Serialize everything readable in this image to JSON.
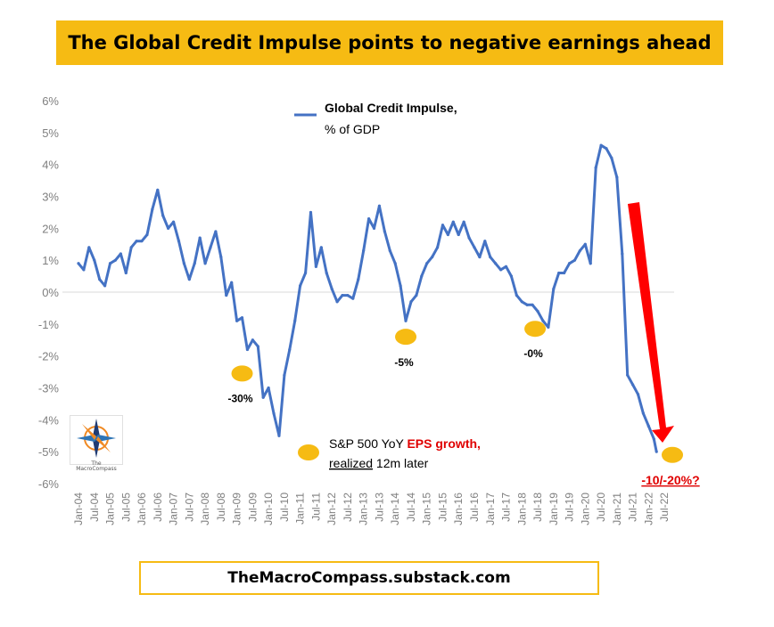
{
  "header": {
    "title": "The Global Credit Impulse points to negative earnings ahead"
  },
  "footer": {
    "site": "TheMacroCompass.substack.com"
  },
  "logo": {
    "line1": "The",
    "line2": "MacroCompass"
  },
  "colors": {
    "line": "#4472c4",
    "marker": "#f6bb13",
    "arrow": "#ff0000",
    "accent_text": "#e00000",
    "axis_text": "#7f7f7f",
    "zero_line": "#d9d9d9"
  },
  "legend": {
    "series_label_1": "Global Credit Impulse,",
    "series_label_2": "% of GDP",
    "marker_label_1": "S&P 500 YoY",
    "marker_label_1_red": "EPS growth,",
    "marker_label_2_underlined": "realized",
    "marker_label_2_rest": "12m later"
  },
  "annotations": [
    {
      "x": "Mar-09",
      "y": -2.55,
      "label": "-30%"
    },
    {
      "x": "May-14",
      "y": -1.4,
      "label": "-5%"
    },
    {
      "x": "Jun-18",
      "y": -1.15,
      "label": "-0%"
    },
    {
      "x": "Oct-22",
      "y": -5.1,
      "label": "-10/-20%?"
    }
  ],
  "chart_data": {
    "type": "line",
    "title": "The Global Credit Impulse points to negative earnings ahead",
    "xlabel": "",
    "ylabel": "",
    "ylim": [
      -6,
      6
    ],
    "y_ticks": [
      "6%",
      "5%",
      "4%",
      "3%",
      "2%",
      "1%",
      "0%",
      "-1%",
      "-2%",
      "-3%",
      "-4%",
      "-5%",
      "-6%"
    ],
    "x_ticks": [
      "Jan-04",
      "Jul-04",
      "Jan-05",
      "Jul-05",
      "Jan-06",
      "Jul-06",
      "Jan-07",
      "Jul-07",
      "Jan-08",
      "Jul-08",
      "Jan-09",
      "Jul-09",
      "Jan-10",
      "Jul-10",
      "Jan-11",
      "Jul-11",
      "Jan-12",
      "Jul-12",
      "Jan-13",
      "Jul-13",
      "Jan-14",
      "Jul-14",
      "Jan-15",
      "Jul-15",
      "Jan-16",
      "Jul-16",
      "Jan-17",
      "Jul-17",
      "Jan-18",
      "Jul-18",
      "Jan-19",
      "Jul-19",
      "Jan-20",
      "Jul-20",
      "Jan-21",
      "Jul-21",
      "Jan-22",
      "Jul-22"
    ],
    "series": [
      {
        "name": "Global Credit Impulse, % of GDP",
        "points": [
          [
            "Jan-04",
            0.9
          ],
          [
            "Mar-04",
            0.7
          ],
          [
            "May-04",
            1.4
          ],
          [
            "Jul-04",
            1.0
          ],
          [
            "Sep-04",
            0.4
          ],
          [
            "Nov-04",
            0.2
          ],
          [
            "Jan-05",
            0.9
          ],
          [
            "Mar-05",
            1.0
          ],
          [
            "May-05",
            1.2
          ],
          [
            "Jul-05",
            0.6
          ],
          [
            "Sep-05",
            1.4
          ],
          [
            "Nov-05",
            1.6
          ],
          [
            "Jan-06",
            1.6
          ],
          [
            "Mar-06",
            1.8
          ],
          [
            "May-06",
            2.6
          ],
          [
            "Jul-06",
            3.2
          ],
          [
            "Sep-06",
            2.4
          ],
          [
            "Nov-06",
            2.0
          ],
          [
            "Jan-07",
            2.2
          ],
          [
            "Mar-07",
            1.6
          ],
          [
            "May-07",
            0.9
          ],
          [
            "Jul-07",
            0.4
          ],
          [
            "Sep-07",
            0.9
          ],
          [
            "Nov-07",
            1.7
          ],
          [
            "Jan-08",
            0.9
          ],
          [
            "Mar-08",
            1.4
          ],
          [
            "May-08",
            1.9
          ],
          [
            "Jul-08",
            1.1
          ],
          [
            "Sep-08",
            -0.1
          ],
          [
            "Nov-08",
            0.3
          ],
          [
            "Jan-09",
            -0.9
          ],
          [
            "Mar-09",
            -0.8
          ],
          [
            "May-09",
            -1.8
          ],
          [
            "Jul-09",
            -1.5
          ],
          [
            "Sep-09",
            -1.7
          ],
          [
            "Nov-09",
            -3.3
          ],
          [
            "Jan-10",
            -3.0
          ],
          [
            "Mar-10",
            -3.8
          ],
          [
            "May-10",
            -4.5
          ],
          [
            "Jul-10",
            -2.6
          ],
          [
            "Sep-10",
            -1.8
          ],
          [
            "Nov-10",
            -0.9
          ],
          [
            "Jan-11",
            0.2
          ],
          [
            "Mar-11",
            0.6
          ],
          [
            "May-11",
            2.5
          ],
          [
            "Jul-11",
            0.8
          ],
          [
            "Sep-11",
            1.4
          ],
          [
            "Nov-11",
            0.6
          ],
          [
            "Jan-12",
            0.1
          ],
          [
            "Mar-12",
            -0.3
          ],
          [
            "May-12",
            -0.1
          ],
          [
            "Jul-12",
            -0.1
          ],
          [
            "Sep-12",
            -0.2
          ],
          [
            "Nov-12",
            0.4
          ],
          [
            "Jan-13",
            1.3
          ],
          [
            "Mar-13",
            2.3
          ],
          [
            "May-13",
            2.0
          ],
          [
            "Jul-13",
            2.7
          ],
          [
            "Sep-13",
            1.9
          ],
          [
            "Nov-13",
            1.3
          ],
          [
            "Jan-14",
            0.9
          ],
          [
            "Mar-14",
            0.2
          ],
          [
            "May-14",
            -0.9
          ],
          [
            "Jul-14",
            -0.3
          ],
          [
            "Sep-14",
            -0.1
          ],
          [
            "Nov-14",
            0.5
          ],
          [
            "Jan-15",
            0.9
          ],
          [
            "Mar-15",
            1.1
          ],
          [
            "May-15",
            1.4
          ],
          [
            "Jul-15",
            2.1
          ],
          [
            "Sep-15",
            1.8
          ],
          [
            "Nov-15",
            2.2
          ],
          [
            "Jan-16",
            1.8
          ],
          [
            "Mar-16",
            2.2
          ],
          [
            "May-16",
            1.7
          ],
          [
            "Jul-16",
            1.4
          ],
          [
            "Sep-16",
            1.1
          ],
          [
            "Nov-16",
            1.6
          ],
          [
            "Jan-17",
            1.1
          ],
          [
            "Mar-17",
            0.9
          ],
          [
            "May-17",
            0.7
          ],
          [
            "Jul-17",
            0.8
          ],
          [
            "Sep-17",
            0.5
          ],
          [
            "Nov-17",
            -0.1
          ],
          [
            "Jan-18",
            -0.3
          ],
          [
            "Mar-18",
            -0.4
          ],
          [
            "May-18",
            -0.4
          ],
          [
            "Jul-18",
            -0.6
          ],
          [
            "Sep-18",
            -0.9
          ],
          [
            "Nov-18",
            -1.1
          ],
          [
            "Jan-19",
            0.1
          ],
          [
            "Mar-19",
            0.6
          ],
          [
            "May-19",
            0.6
          ],
          [
            "Jul-19",
            0.9
          ],
          [
            "Sep-19",
            1.0
          ],
          [
            "Nov-19",
            1.3
          ],
          [
            "Jan-20",
            1.5
          ],
          [
            "Mar-20",
            0.9
          ],
          [
            "May-20",
            3.9
          ],
          [
            "Jul-20",
            4.6
          ],
          [
            "Sep-20",
            4.5
          ],
          [
            "Nov-20",
            4.2
          ],
          [
            "Jan-21",
            3.6
          ],
          [
            "Mar-21",
            1.2
          ],
          [
            "May-21",
            -2.6
          ],
          [
            "Jul-21",
            -2.9
          ],
          [
            "Sep-21",
            -3.2
          ],
          [
            "Nov-21",
            -3.8
          ],
          [
            "Jan-22",
            -4.2
          ],
          [
            "Mar-22",
            -4.6
          ],
          [
            "Apr-22",
            -5.0
          ]
        ]
      }
    ],
    "grid": false,
    "legend": "top-center"
  }
}
